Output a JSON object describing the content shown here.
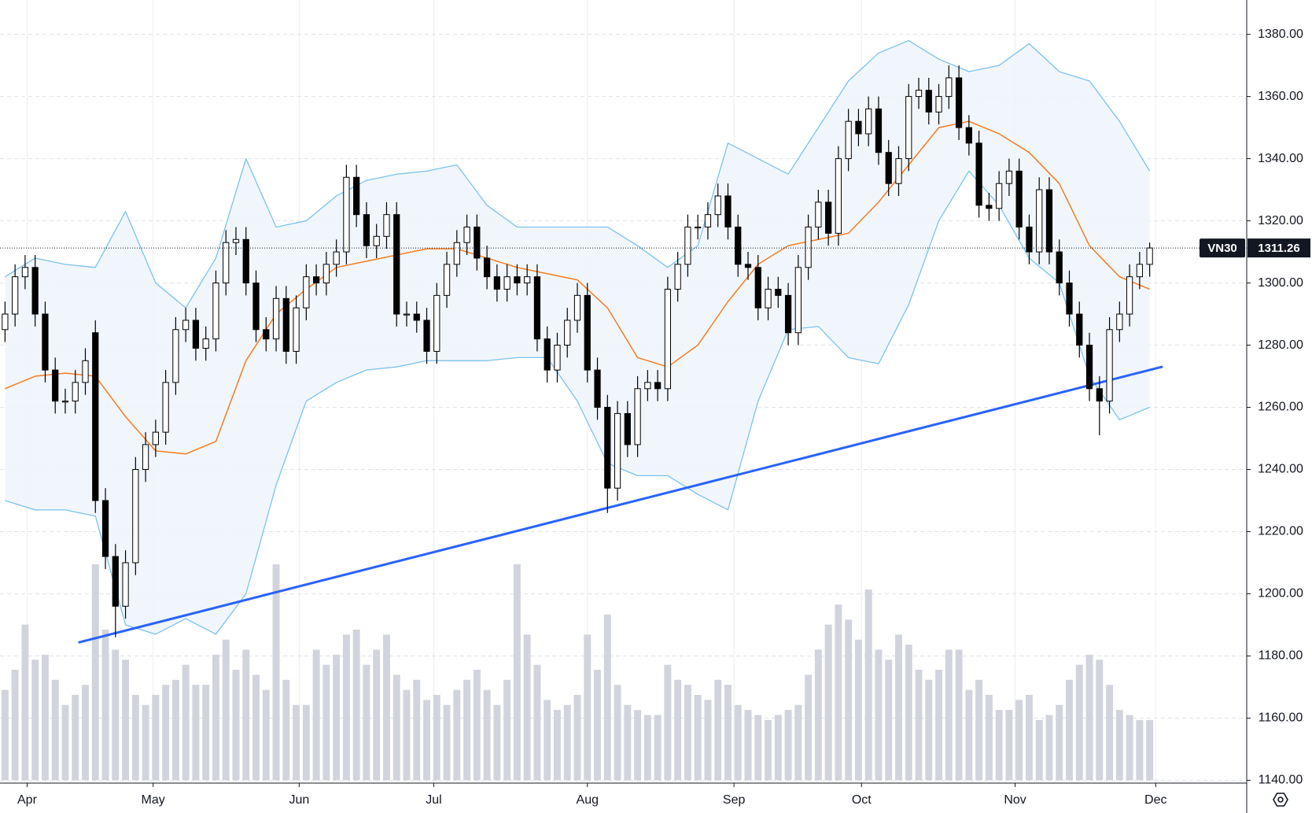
{
  "chart_data": {
    "type": "candlestick",
    "symbol": "VN30",
    "last_price": 1311.26,
    "ylim": [
      1140,
      1380
    ],
    "yticks": [
      {
        "value": 1140,
        "label": "1140.00"
      },
      {
        "value": 1160,
        "label": "1160.00"
      },
      {
        "value": 1180,
        "label": "1180.00"
      },
      {
        "value": 1200,
        "label": "1200.00"
      },
      {
        "value": 1220,
        "label": "1220.00"
      },
      {
        "value": 1240,
        "label": "1240.00"
      },
      {
        "value": 1260,
        "label": "1260.00"
      },
      {
        "value": 1280,
        "label": "1280.00"
      },
      {
        "value": 1300,
        "label": "1300.00"
      },
      {
        "value": 1320,
        "label": "1320.00"
      },
      {
        "value": 1340,
        "label": "1340.00"
      },
      {
        "value": 1360,
        "label": "1360.00"
      },
      {
        "value": 1380,
        "label": "1380.00"
      }
    ],
    "xlim": [
      -0.5,
      129.5
    ],
    "xticks": [
      {
        "value": 2.2,
        "label": "Apr"
      },
      {
        "value": 14.75,
        "label": "May"
      },
      {
        "value": 29.3,
        "label": "Jun"
      },
      {
        "value": 42.7,
        "label": "Jul"
      },
      {
        "value": 58,
        "label": "Aug"
      },
      {
        "value": 72.6,
        "label": "Sep"
      },
      {
        "value": 85.3,
        "label": "Oct"
      },
      {
        "value": 100.6,
        "label": "Nov"
      },
      {
        "value": 114.6,
        "label": "Dec"
      }
    ],
    "grid": true,
    "up_color": "#ffffff",
    "down_color": "#000000",
    "open": [
      1285,
      1290,
      1302,
      1305,
      1290,
      1272,
      1262,
      1262,
      1268,
      1284,
      1230,
      1212,
      1196,
      1210,
      1240,
      1248,
      1252,
      1268,
      1285,
      1288,
      1279,
      1282,
      1300,
      1313,
      1314,
      1300,
      1285,
      1282,
      1295,
      1278,
      1292,
      1302,
      1300,
      1306,
      1310,
      1334,
      1322,
      1312,
      1315,
      1322,
      1290,
      1290,
      1288,
      1278,
      1296,
      1306,
      1313,
      1318,
      1308,
      1302,
      1298,
      1302,
      1300,
      1302,
      1282,
      1272,
      1280,
      1288,
      1296,
      1272,
      1260,
      1234,
      1258,
      1248,
      1266,
      1268,
      1266,
      1298,
      1306,
      1318,
      1318,
      1322,
      1328,
      1318,
      1306,
      1305,
      1292,
      1298,
      1296,
      1284,
      1305,
      1318,
      1326,
      1316,
      1340,
      1352,
      1348,
      1356,
      1342,
      1332,
      1340,
      1360,
      1362,
      1355,
      1360,
      1366,
      1350,
      1345,
      1325,
      1324,
      1332,
      1336,
      1318,
      1310,
      1330,
      1310,
      1300,
      1290,
      1280,
      1266,
      1262,
      1285,
      1290,
      1302,
      1306
    ],
    "high": [
      1294,
      1306,
      1309,
      1309,
      1294,
      1276,
      1266,
      1272,
      1279,
      1288,
      1234,
      1216,
      1214,
      1244,
      1252,
      1256,
      1272,
      1289,
      1292,
      1292,
      1286,
      1304,
      1317,
      1318,
      1318,
      1304,
      1289,
      1299,
      1299,
      1296,
      1306,
      1306,
      1310,
      1314,
      1338,
      1338,
      1326,
      1319,
      1326,
      1326,
      1294,
      1294,
      1292,
      1300,
      1310,
      1317,
      1322,
      1322,
      1312,
      1306,
      1306,
      1306,
      1306,
      1306,
      1286,
      1284,
      1292,
      1300,
      1300,
      1276,
      1264,
      1262,
      1262,
      1270,
      1272,
      1272,
      1302,
      1310,
      1322,
      1322,
      1326,
      1332,
      1332,
      1322,
      1310,
      1309,
      1302,
      1302,
      1300,
      1309,
      1322,
      1330,
      1330,
      1344,
      1356,
      1356,
      1360,
      1360,
      1346,
      1344,
      1364,
      1366,
      1366,
      1364,
      1370,
      1370,
      1354,
      1349,
      1329,
      1336,
      1340,
      1340,
      1322,
      1334,
      1334,
      1314,
      1304,
      1294,
      1284,
      1270,
      1289,
      1294,
      1306,
      1310,
      1313
    ],
    "low": [
      1281,
      1286,
      1298,
      1286,
      1268,
      1258,
      1258,
      1258,
      1264,
      1226,
      1208,
      1186,
      1192,
      1206,
      1236,
      1244,
      1248,
      1264,
      1281,
      1275,
      1275,
      1278,
      1296,
      1309,
      1296,
      1281,
      1278,
      1278,
      1274,
      1274,
      1288,
      1296,
      1296,
      1302,
      1306,
      1318,
      1308,
      1308,
      1311,
      1286,
      1286,
      1284,
      1274,
      1274,
      1292,
      1302,
      1309,
      1304,
      1298,
      1294,
      1294,
      1296,
      1296,
      1278,
      1268,
      1268,
      1276,
      1284,
      1268,
      1256,
      1226,
      1230,
      1244,
      1244,
      1262,
      1262,
      1262,
      1294,
      1302,
      1314,
      1314,
      1318,
      1314,
      1302,
      1301,
      1288,
      1288,
      1292,
      1280,
      1280,
      1301,
      1314,
      1312,
      1312,
      1336,
      1344,
      1344,
      1338,
      1328,
      1328,
      1336,
      1356,
      1351,
      1351,
      1356,
      1346,
      1341,
      1321,
      1320,
      1320,
      1328,
      1314,
      1306,
      1306,
      1306,
      1296,
      1286,
      1276,
      1262,
      1251,
      1258,
      1281,
      1286,
      1298,
      1302
    ],
    "close": [
      1290,
      1302,
      1305,
      1290,
      1272,
      1262,
      1262,
      1268,
      1275,
      1230,
      1212,
      1196,
      1210,
      1240,
      1248,
      1252,
      1268,
      1285,
      1288,
      1279,
      1282,
      1300,
      1313,
      1314,
      1300,
      1285,
      1282,
      1295,
      1278,
      1292,
      1302,
      1300,
      1306,
      1310,
      1334,
      1322,
      1312,
      1315,
      1322,
      1290,
      1290,
      1288,
      1278,
      1296,
      1306,
      1313,
      1318,
      1308,
      1302,
      1298,
      1302,
      1300,
      1302,
      1282,
      1272,
      1280,
      1288,
      1296,
      1272,
      1260,
      1234,
      1258,
      1248,
      1266,
      1268,
      1266,
      1298,
      1306,
      1318,
      1318,
      1322,
      1328,
      1318,
      1306,
      1305,
      1292,
      1298,
      1296,
      1284,
      1305,
      1318,
      1326,
      1316,
      1340,
      1352,
      1348,
      1356,
      1342,
      1332,
      1340,
      1360,
      1362,
      1355,
      1360,
      1366,
      1350,
      1345,
      1325,
      1324,
      1332,
      1336,
      1318,
      1310,
      1330,
      1310,
      1300,
      1290,
      1280,
      1266,
      1262,
      1285,
      1290,
      1302,
      1306,
      1311.26
    ],
    "volume_lim": [
      0,
      100
    ],
    "volume_color": "#d1d4dc",
    "volume": [
      36,
      44,
      62,
      48,
      50,
      40,
      30,
      34,
      38,
      86,
      60,
      52,
      48,
      34,
      30,
      34,
      38,
      40,
      46,
      38,
      38,
      50,
      56,
      44,
      52,
      42,
      36,
      86,
      40,
      30,
      30,
      52,
      46,
      50,
      58,
      60,
      46,
      52,
      58,
      42,
      36,
      40,
      32,
      34,
      30,
      36,
      40,
      44,
      36,
      30,
      40,
      86,
      58,
      46,
      32,
      28,
      30,
      34,
      58,
      44,
      66,
      38,
      30,
      28,
      26,
      26,
      46,
      40,
      38,
      34,
      32,
      40,
      38,
      30,
      28,
      26,
      24,
      26,
      28,
      30,
      42,
      52,
      62,
      70,
      64,
      56,
      76,
      52,
      48,
      58,
      54,
      44,
      40,
      44,
      52,
      52,
      36,
      40,
      34,
      28,
      28,
      32,
      34,
      24,
      26,
      30,
      40,
      46,
      50,
      48,
      38,
      28,
      26,
      24,
      24
    ],
    "bands": {
      "x": [
        0,
        3,
        6,
        9,
        12,
        15,
        18,
        21,
        24,
        27,
        30,
        33,
        36,
        39,
        42,
        45,
        48,
        51,
        54,
        57,
        60,
        63,
        66,
        69,
        72,
        75,
        78,
        81,
        84,
        87,
        90,
        93,
        96,
        99,
        102,
        105,
        108,
        111,
        114
      ],
      "ma": [
        1266,
        1270,
        1271,
        1270,
        1257,
        1246,
        1245,
        1249,
        1275,
        1290,
        1298,
        1305,
        1307,
        1309,
        1311,
        1311,
        1308,
        1305,
        1303,
        1301,
        1292,
        1276,
        1273,
        1280,
        1294,
        1306,
        1312,
        1314,
        1316,
        1326,
        1338,
        1350,
        1352,
        1348,
        1342,
        1332,
        1312,
        1302,
        1298
      ],
      "upper": [
        1302,
        1308,
        1306,
        1305,
        1323,
        1300,
        1292,
        1308,
        1340,
        1318,
        1320,
        1328,
        1333,
        1335,
        1336,
        1338,
        1325,
        1318,
        1318,
        1318,
        1318,
        1312,
        1305,
        1312,
        1345,
        1340,
        1335,
        1350,
        1365,
        1374,
        1378,
        1372,
        1368,
        1370,
        1377,
        1368,
        1365,
        1352,
        1336
      ],
      "lower": [
        1230,
        1227,
        1227,
        1225,
        1190,
        1187,
        1192,
        1187,
        1200,
        1235,
        1262,
        1268,
        1272,
        1273,
        1275,
        1275,
        1275,
        1276,
        1276,
        1262,
        1242,
        1238,
        1238,
        1232,
        1227,
        1262,
        1285,
        1286,
        1276,
        1274,
        1293,
        1320,
        1336,
        1325,
        1308,
        1300,
        1270,
        1256,
        1260
      ],
      "ma_color": "#f57c20",
      "band_color": "#7cc2ec",
      "fill_color": "#eef5fc"
    },
    "trendline": {
      "x": [
        7.4,
        115.2
      ],
      "y": [
        1184.4,
        1273
      ],
      "color": "#2962ff"
    }
  }
}
